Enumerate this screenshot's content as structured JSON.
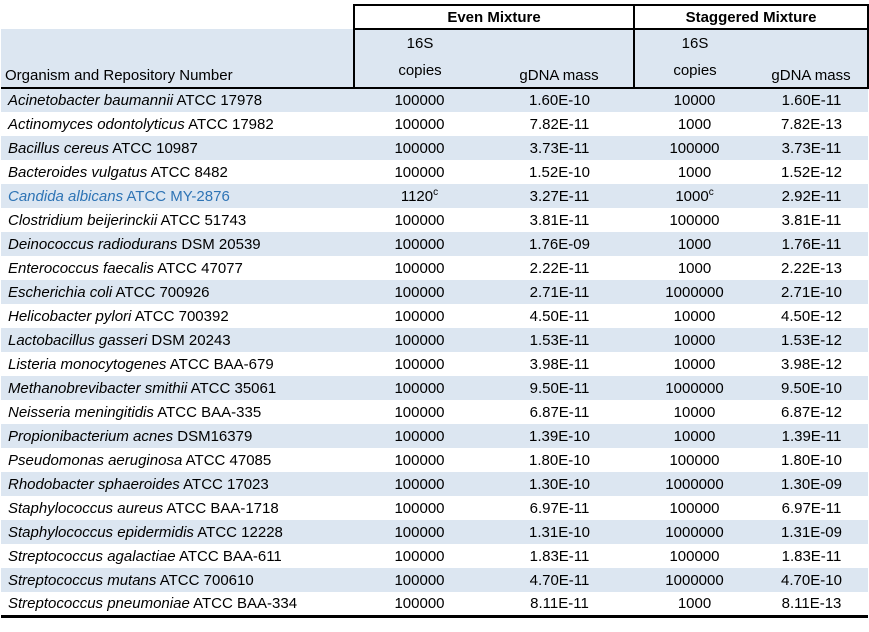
{
  "colors": {
    "band": "#DCE6F1",
    "highlight_text": "#2E74B5",
    "border": "#000000"
  },
  "table": {
    "group_headers": {
      "even": "Even Mixture",
      "staggered": "Staggered Mixture"
    },
    "col_headers": {
      "organism": "Organism and Repository Number",
      "copies_line1": "16S",
      "copies_line2": "copies",
      "mass": "gDNA mass"
    },
    "rows": [
      {
        "organism": "Acinetobacter baumannii",
        "repo": "ATCC 17978",
        "even_copies": "100000",
        "even_mass": "1.60E-10",
        "stag_copies": "10000",
        "stag_mass": "1.60E-11",
        "highlight": false
      },
      {
        "organism": "Actinomyces odontolyticus",
        "repo": "ATCC 17982",
        "even_copies": "100000",
        "even_mass": "7.82E-11",
        "stag_copies": "1000",
        "stag_mass": "7.82E-13",
        "highlight": false
      },
      {
        "organism": "Bacillus cereus",
        "repo": "ATCC 10987",
        "even_copies": "100000",
        "even_mass": "3.73E-11",
        "stag_copies": "100000",
        "stag_mass": "3.73E-11",
        "highlight": false
      },
      {
        "organism": "Bacteroides vulgatus",
        "repo": "ATCC 8482",
        "even_copies": "100000",
        "even_mass": "1.52E-10",
        "stag_copies": "1000",
        "stag_mass": "1.52E-12",
        "highlight": false
      },
      {
        "organism": "Candida albicans",
        "repo": "ATCC MY-2876",
        "even_copies": "1120",
        "even_sup": "c",
        "even_mass": "3.27E-11",
        "stag_copies": "1000",
        "stag_sup": "c",
        "stag_mass": "2.92E-11",
        "highlight": true
      },
      {
        "organism": "Clostridium beijerinckii",
        "repo": "ATCC 51743",
        "even_copies": "100000",
        "even_mass": "3.81E-11",
        "stag_copies": "100000",
        "stag_mass": "3.81E-11",
        "highlight": false
      },
      {
        "organism": "Deinococcus radiodurans",
        "repo": "DSM 20539",
        "even_copies": "100000",
        "even_mass": "1.76E-09",
        "stag_copies": "1000",
        "stag_mass": "1.76E-11",
        "highlight": false
      },
      {
        "organism": "Enterococcus faecalis",
        "repo": "ATCC 47077",
        "even_copies": "100000",
        "even_mass": "2.22E-11",
        "stag_copies": "1000",
        "stag_mass": "2.22E-13",
        "highlight": false
      },
      {
        "organism": "Escherichia coli",
        "repo": "ATCC 700926",
        "even_copies": "100000",
        "even_mass": "2.71E-11",
        "stag_copies": "1000000",
        "stag_mass": "2.71E-10",
        "highlight": false
      },
      {
        "organism": "Helicobacter pylori",
        "repo": "ATCC 700392",
        "even_copies": "100000",
        "even_mass": "4.50E-11",
        "stag_copies": "10000",
        "stag_mass": "4.50E-12",
        "highlight": false
      },
      {
        "organism": "Lactobacillus gasseri",
        "repo": "DSM 20243",
        "even_copies": "100000",
        "even_mass": "1.53E-11",
        "stag_copies": "10000",
        "stag_mass": "1.53E-12",
        "highlight": false
      },
      {
        "organism": "Listeria monocytogenes",
        "repo": "ATCC BAA-679",
        "even_copies": "100000",
        "even_mass": "3.98E-11",
        "stag_copies": "10000",
        "stag_mass": "3.98E-12",
        "highlight": false
      },
      {
        "organism": "Methanobrevibacter smithii",
        "repo": "ATCC 35061",
        "even_copies": "100000",
        "even_mass": "9.50E-11",
        "stag_copies": "1000000",
        "stag_mass": "9.50E-10",
        "highlight": false
      },
      {
        "organism": "Neisseria meningitidis",
        "repo": "ATCC BAA-335",
        "even_copies": "100000",
        "even_mass": "6.87E-11",
        "stag_copies": "10000",
        "stag_mass": "6.87E-12",
        "highlight": false
      },
      {
        "organism": "Propionibacterium acnes",
        "repo": "DSM16379",
        "even_copies": "100000",
        "even_mass": "1.39E-10",
        "stag_copies": "10000",
        "stag_mass": "1.39E-11",
        "highlight": false
      },
      {
        "organism": "Pseudomonas aeruginosa",
        "repo": "ATCC 47085",
        "even_copies": "100000",
        "even_mass": "1.80E-10",
        "stag_copies": "100000",
        "stag_mass": "1.80E-10",
        "highlight": false
      },
      {
        "organism": "Rhodobacter sphaeroides",
        "repo": "ATCC 17023",
        "even_copies": "100000",
        "even_mass": "1.30E-10",
        "stag_copies": "1000000",
        "stag_mass": "1.30E-09",
        "highlight": false
      },
      {
        "organism": "Staphylococcus aureus",
        "repo": "ATCC BAA-1718",
        "even_copies": "100000",
        "even_mass": "6.97E-11",
        "stag_copies": "100000",
        "stag_mass": "6.97E-11",
        "highlight": false
      },
      {
        "organism": "Staphylococcus epidermidis",
        "repo": "ATCC 12228",
        "even_copies": "100000",
        "even_mass": "1.31E-10",
        "stag_copies": "1000000",
        "stag_mass": "1.31E-09",
        "highlight": false
      },
      {
        "organism": "Streptococcus agalactiae",
        "repo": "ATCC BAA-611",
        "even_copies": "100000",
        "even_mass": "1.83E-11",
        "stag_copies": "100000",
        "stag_mass": "1.83E-11",
        "highlight": false
      },
      {
        "organism": "Streptococcus mutans",
        "repo": "ATCC 700610",
        "even_copies": "100000",
        "even_mass": "4.70E-11",
        "stag_copies": "1000000",
        "stag_mass": "4.70E-10",
        "highlight": false
      },
      {
        "organism": "Streptococcus pneumoniae",
        "repo": "ATCC BAA-334",
        "even_copies": "100000",
        "even_mass": "8.11E-11",
        "stag_copies": "1000",
        "stag_mass": "8.11E-13",
        "highlight": false
      }
    ]
  }
}
